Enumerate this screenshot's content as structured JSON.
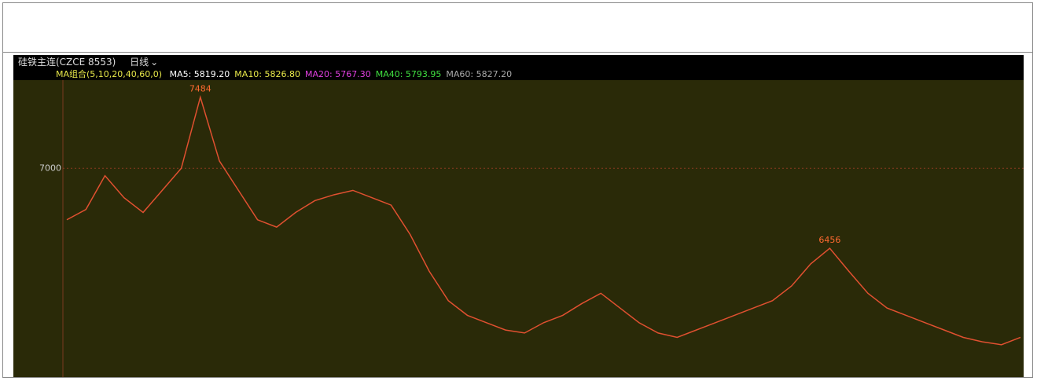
{
  "toolbar": {
    "symbol": "硅铁主连(CZCE 8553)",
    "period": "日线"
  },
  "ma_legend": {
    "title": "MA组合(5,10,20,40,60,0)",
    "items": [
      {
        "text": "MA5: 5819.20",
        "color": "#ffffff"
      },
      {
        "text": "MA10: 5826.80",
        "color": "#e8e84a"
      },
      {
        "text": "MA20: 5767.30",
        "color": "#e040e0"
      },
      {
        "text": "MA40: 5793.95",
        "color": "#40e040"
      },
      {
        "text": "MA60: 5827.20",
        "color": "#aaaaaa"
      }
    ]
  },
  "chart_data": {
    "type": "line",
    "color": "#e05030",
    "values": [
      6650,
      6720,
      6950,
      6800,
      6700,
      6850,
      7000,
      7484,
      7050,
      6850,
      6650,
      6600,
      6700,
      6780,
      6820,
      6850,
      6800,
      6750,
      6550,
      6300,
      6100,
      6000,
      5950,
      5900,
      5880,
      5950,
      6000,
      6080,
      6150,
      6050,
      5950,
      5880,
      5850,
      5900,
      5950,
      6000,
      6050,
      6100,
      6200,
      6350,
      6456,
      6300,
      6150,
      6050,
      6000,
      5950,
      5900,
      5850,
      5820,
      5800,
      5850
    ],
    "ylim": [
      5580,
      7600
    ],
    "yticks": [
      7000
    ],
    "annotations": [
      7484,
      6456
    ],
    "grid": true
  }
}
